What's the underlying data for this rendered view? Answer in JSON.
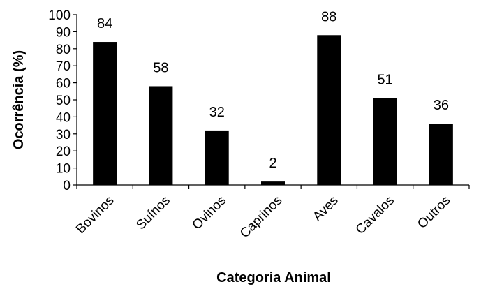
{
  "chart_data": {
    "type": "bar",
    "categories": [
      "Bovinos",
      "Suínos",
      "Ovinos",
      "Caprinos",
      "Aves",
      "Cavalos",
      "Outros"
    ],
    "values": [
      84,
      58,
      32,
      2,
      88,
      51,
      36
    ],
    "xlabel": "Categoria Animal",
    "ylabel": "Ocorrência (%)",
    "ylim": [
      0,
      100
    ],
    "yticks": [
      "0",
      "10",
      "20",
      "30",
      "40",
      "50",
      "60",
      "70",
      "80",
      "90",
      "100"
    ],
    "bar_color": "#000000",
    "grid": false
  }
}
